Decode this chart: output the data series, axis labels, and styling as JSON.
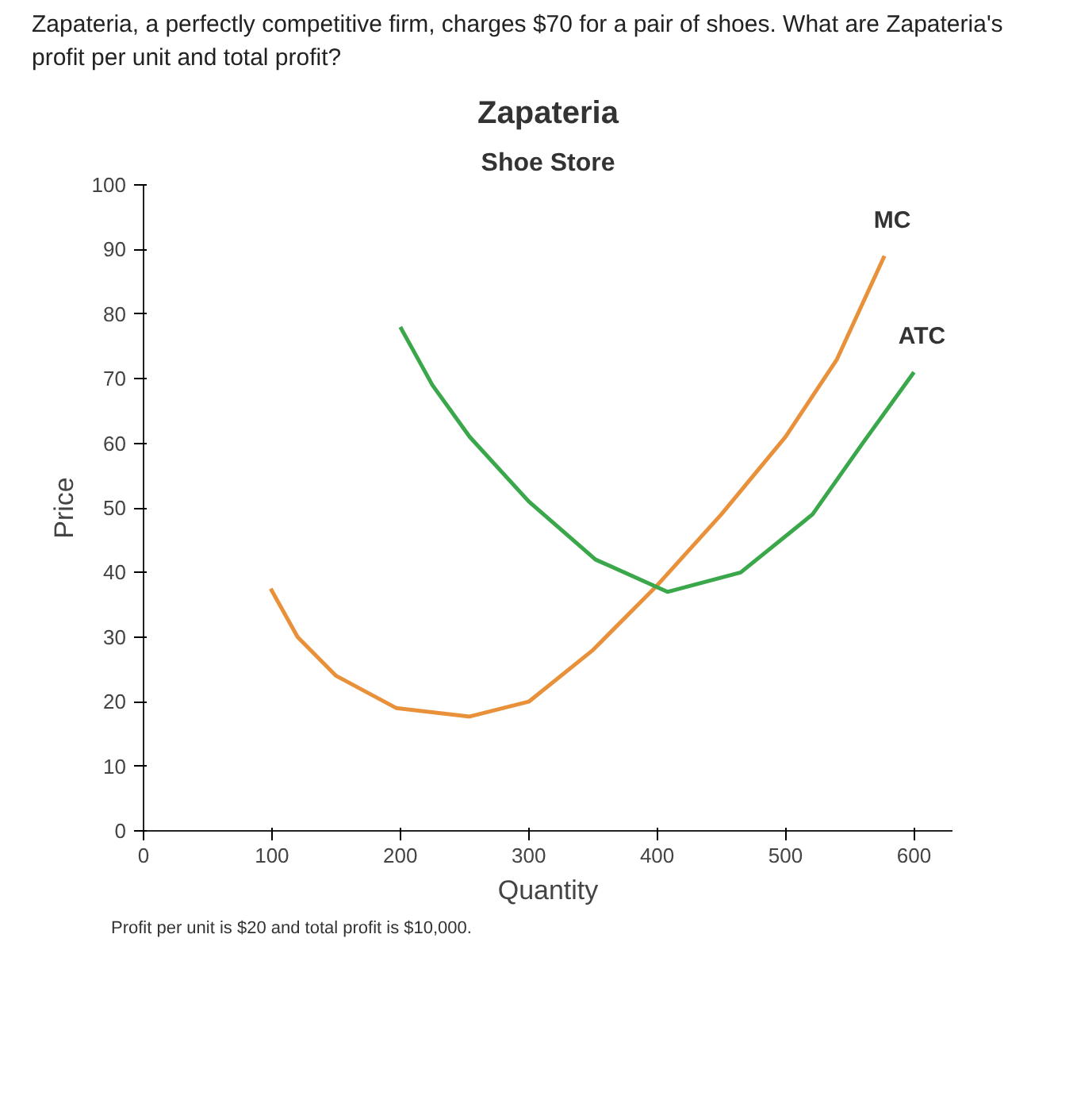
{
  "chart_data": {
    "type": "line",
    "title": "Zapateria",
    "subtitle": "Shoe Store",
    "xlabel": "Quantity",
    "ylabel": "Price",
    "annotations": [
      "Zapateria, a perfectly competitive firm, charges $70 for a pair of shoes. What are Zapateria's profit per unit and total profit?",
      "Profit per unit is $20 and total profit is $10,000."
    ],
    "xlim": [
      0,
      630
    ],
    "ylim": [
      0,
      100
    ],
    "xticks": [
      0,
      100,
      200,
      300,
      400,
      500,
      600
    ],
    "yticks": [
      0,
      10,
      20,
      30,
      40,
      50,
      60,
      70,
      80,
      90,
      100
    ],
    "grid": false,
    "legend": false,
    "marker": "none",
    "line_style": "solid",
    "series": [
      {
        "name": "MC",
        "color": "#e8913a",
        "x": [
          99,
          120,
          150,
          197,
          254,
          300,
          350,
          400,
          450,
          500,
          540,
          577
        ],
        "values": [
          37.5,
          30,
          24,
          19,
          17.7,
          20,
          28,
          38,
          49,
          61,
          73,
          89
        ]
      },
      {
        "name": "ATC",
        "color": "#3aa84a",
        "x": [
          200,
          225,
          254,
          300,
          352,
          408,
          465,
          521,
          560,
          600
        ],
        "values": [
          78,
          69,
          61,
          51,
          42,
          37,
          40,
          49,
          60,
          71
        ]
      }
    ]
  }
}
